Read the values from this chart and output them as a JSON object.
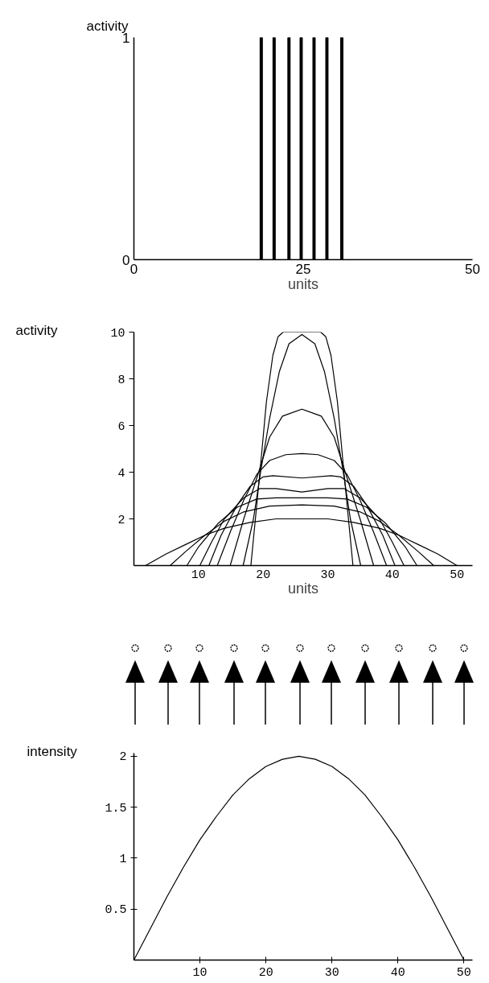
{
  "chart_data": [
    {
      "type": "bar",
      "x": [
        18.8,
        20.7,
        22.9,
        24.7,
        26.6,
        28.5,
        30.7
      ],
      "values": [
        1,
        1,
        1,
        1,
        1,
        1,
        1
      ],
      "color": "#000000",
      "xlim": [
        0,
        50
      ],
      "ylim": [
        0,
        1
      ],
      "xticks": [
        0,
        25,
        50
      ],
      "yticks": [
        0,
        1
      ],
      "xlabel": "units",
      "ylabel": "activity"
    },
    {
      "type": "line",
      "series": [
        {
          "color": "#000000",
          "x": [
            18.1,
            19.5,
            20.5,
            21.5,
            22.3,
            23.1,
            28.9,
            29.7,
            30.5,
            31.5,
            32.5,
            33.9
          ],
          "values": [
            0,
            4,
            7,
            9,
            9.8,
            10,
            10,
            9.8,
            9,
            7,
            4,
            0
          ]
        },
        {
          "color": "#000000",
          "x": [
            16.9,
            18.5,
            19.6,
            21,
            22.5,
            24,
            26,
            28,
            29.5,
            31,
            32.4,
            33.5,
            35.1
          ],
          "values": [
            0,
            2,
            4,
            6.3,
            8.3,
            9.5,
            9.9,
            9.5,
            8.3,
            6.3,
            4,
            2,
            0
          ]
        },
        {
          "color": "#000000",
          "x": [
            14.9,
            17,
            19.3,
            21,
            23,
            26,
            29,
            31,
            32.7,
            35,
            37.1
          ],
          "values": [
            0,
            2,
            4,
            5.5,
            6.4,
            6.7,
            6.4,
            5.5,
            4,
            2,
            0
          ]
        },
        {
          "color": "#000000",
          "x": [
            12.9,
            15,
            17,
            19,
            21,
            23.5,
            26,
            28.5,
            31,
            33,
            35,
            37,
            39.1
          ],
          "values": [
            0,
            1.5,
            2.8,
            3.9,
            4.5,
            4.75,
            4.8,
            4.75,
            4.5,
            3.9,
            2.8,
            1.5,
            0
          ]
        },
        {
          "color": "#000000",
          "x": [
            11.6,
            13.5,
            16,
            18,
            20,
            21.5,
            26,
            30.5,
            32,
            34,
            36,
            38.5,
            40.4
          ],
          "values": [
            0,
            1.3,
            2.6,
            3.4,
            3.8,
            3.85,
            3.75,
            3.85,
            3.8,
            3.4,
            2.6,
            1.3,
            0
          ]
        },
        {
          "color": "#000000",
          "x": [
            10.2,
            12,
            14,
            17,
            19.5,
            22,
            26,
            30,
            32.5,
            35,
            38,
            40,
            41.8
          ],
          "values": [
            0,
            1,
            2,
            2.9,
            3.3,
            3.3,
            3.15,
            3.3,
            3.3,
            2.9,
            2,
            1,
            0
          ]
        },
        {
          "color": "#000000",
          "x": [
            8.2,
            10,
            13,
            16,
            19,
            22,
            26,
            30,
            33,
            36,
            39,
            42,
            43.8
          ],
          "values": [
            0,
            0.8,
            1.8,
            2.5,
            2.85,
            2.9,
            2.9,
            2.9,
            2.85,
            2.5,
            1.8,
            0.8,
            0
          ]
        },
        {
          "color": "#000000",
          "x": [
            5.6,
            8,
            11,
            14,
            17,
            21,
            26,
            31,
            35,
            38,
            41,
            44,
            46.4
          ],
          "values": [
            0,
            0.6,
            1.3,
            1.9,
            2.3,
            2.55,
            2.6,
            2.55,
            2.3,
            1.9,
            1.3,
            0.6,
            0
          ]
        },
        {
          "color": "#000000",
          "x": [
            1.8,
            5,
            8,
            11,
            14,
            18,
            22,
            26,
            30,
            34,
            38,
            41,
            44,
            47,
            50
          ],
          "values": [
            0,
            0.5,
            0.9,
            1.3,
            1.6,
            1.85,
            2.0,
            2.0,
            2.0,
            1.85,
            1.6,
            1.3,
            0.9,
            0.5,
            0
          ]
        }
      ],
      "xlim": [
        0,
        52.4
      ],
      "ylim": [
        0,
        10
      ],
      "xticks": [
        10,
        20,
        30,
        40,
        50
      ],
      "yticks": [
        2,
        4,
        6,
        8,
        10
      ],
      "xlabel": "units",
      "ylabel": "activity"
    },
    {
      "type": "line",
      "x": [
        0,
        2.5,
        5,
        7.5,
        10,
        12.5,
        15,
        17.5,
        20,
        22.5,
        25,
        27.5,
        30,
        32.5,
        35,
        37.5,
        40,
        42.5,
        45,
        47.5,
        50
      ],
      "values": [
        0,
        0.31,
        0.62,
        0.91,
        1.18,
        1.41,
        1.62,
        1.78,
        1.9,
        1.97,
        2,
        1.97,
        1.9,
        1.78,
        1.62,
        1.41,
        1.18,
        0.91,
        0.62,
        0.31,
        0
      ],
      "color": "#000000",
      "xlim": [
        0,
        51.3
      ],
      "ylim": [
        0,
        2.03
      ],
      "xticks": [
        10,
        20,
        30,
        40,
        50
      ],
      "yticks": [
        0.5,
        1,
        1.5,
        2
      ],
      "ylabel": "intensity"
    }
  ]
}
